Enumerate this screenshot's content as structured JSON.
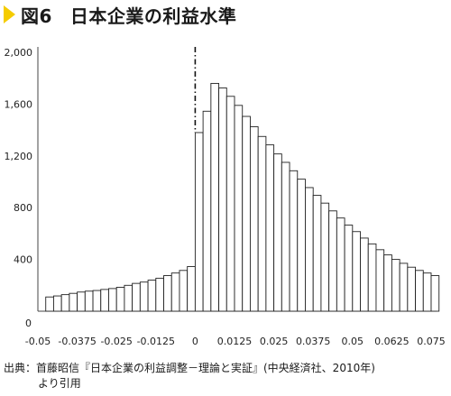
{
  "figure": {
    "label": "図6",
    "title": "日本企業の利益水準",
    "marker_color": "#f5cc00"
  },
  "source": {
    "line1": "出典：首藤昭信『日本企業の利益調整－理論と実証』(中央経済社、2010年)",
    "line2": "より引用"
  },
  "chart_data": {
    "type": "bar",
    "title": "日本企業の利益水準",
    "xlabel": "",
    "ylabel": "",
    "x_ticks": [
      "-0.05",
      "-0.0375",
      "-0.025",
      "-0.0125",
      "0",
      "0.0125",
      "0.025",
      "0.0375",
      "0.05",
      "0.0625",
      "0.075"
    ],
    "y_ticks": [
      "0",
      "400",
      "800",
      "1,200",
      "1,600",
      "2,000"
    ],
    "xlim": [
      -0.05,
      0.075
    ],
    "ylim": [
      0,
      2000
    ],
    "bin_width": 0.0025,
    "bins_start": [
      -0.0475,
      -0.045,
      -0.0425,
      -0.04,
      -0.0375,
      -0.035,
      -0.0325,
      -0.03,
      -0.0275,
      -0.025,
      -0.0225,
      -0.02,
      -0.0175,
      -0.015,
      -0.0125,
      -0.01,
      -0.0075,
      -0.005,
      -0.0025,
      0,
      0.0025,
      0.005,
      0.0075,
      0.01,
      0.0125,
      0.015,
      0.0175,
      0.02,
      0.0225,
      0.025,
      0.0275,
      0.03,
      0.0325,
      0.035,
      0.0375,
      0.04,
      0.0425,
      0.045,
      0.0475,
      0.05,
      0.0525,
      0.055,
      0.0575,
      0.06,
      0.0625,
      0.065,
      0.0675,
      0.07,
      0.0725,
      0.075
    ],
    "values": [
      110,
      118,
      128,
      138,
      148,
      155,
      160,
      168,
      175,
      185,
      200,
      215,
      225,
      240,
      255,
      275,
      295,
      315,
      345,
      1380,
      1545,
      1760,
      1725,
      1660,
      1590,
      1505,
      1425,
      1350,
      1285,
      1215,
      1150,
      1085,
      1020,
      955,
      895,
      835,
      775,
      720,
      665,
      615,
      565,
      520,
      475,
      435,
      400,
      370,
      340,
      315,
      295,
      275
    ],
    "zero_line": "dash-dot vertical line at x = 0",
    "grid": false,
    "legend": "none"
  }
}
